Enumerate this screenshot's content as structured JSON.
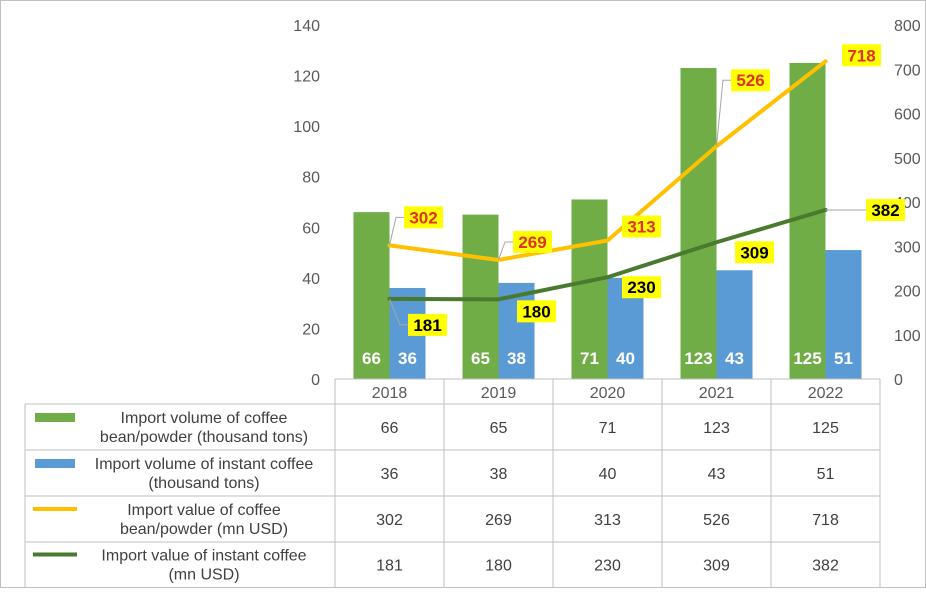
{
  "chart_data": {
    "type": "bar",
    "combo": true,
    "categories": [
      "2018",
      "2019",
      "2020",
      "2021",
      "2022"
    ],
    "series": [
      {
        "name": "Import volume of coffee bean/powder (thousand tons)",
        "type": "bar",
        "axis": "left",
        "color": "#70ad47",
        "values": [
          66,
          65,
          71,
          123,
          125
        ]
      },
      {
        "name": "Import volume of instant coffee (thousand tons)",
        "type": "bar",
        "axis": "left",
        "color": "#5b9bd5",
        "values": [
          36,
          38,
          40,
          43,
          51
        ]
      },
      {
        "name": "Import value of coffee bean/powder (mn USD)",
        "type": "line",
        "axis": "right",
        "color": "#ffc000",
        "values": [
          302,
          269,
          313,
          526,
          718
        ]
      },
      {
        "name": "Import value of instant coffee (mn USD)",
        "type": "line",
        "axis": "right",
        "color": "#4a7a2e",
        "values": [
          181,
          180,
          230,
          309,
          382
        ]
      }
    ],
    "legend_rows": [
      [
        "Import volume of coffee",
        "bean/powder (thousand tons)"
      ],
      [
        "Import volume of instant coffee",
        "(thousand tons)"
      ],
      [
        "Import value of coffee",
        "bean/powder (mn USD)"
      ],
      [
        "Import value of instant coffee",
        "(mn USD)"
      ]
    ],
    "y_left": {
      "min": 0,
      "max": 140,
      "ticks": [
        "0",
        "20",
        "40",
        "60",
        "80",
        "100",
        "120",
        "140"
      ]
    },
    "y_right": {
      "min": 0,
      "max": 800,
      "ticks": [
        "0",
        "100",
        "200",
        "300",
        "400",
        "500",
        "600",
        "700",
        "800"
      ]
    },
    "data_table": true,
    "grid": false,
    "label_highlight": "#ffff00",
    "label_red": "#e0302a"
  }
}
